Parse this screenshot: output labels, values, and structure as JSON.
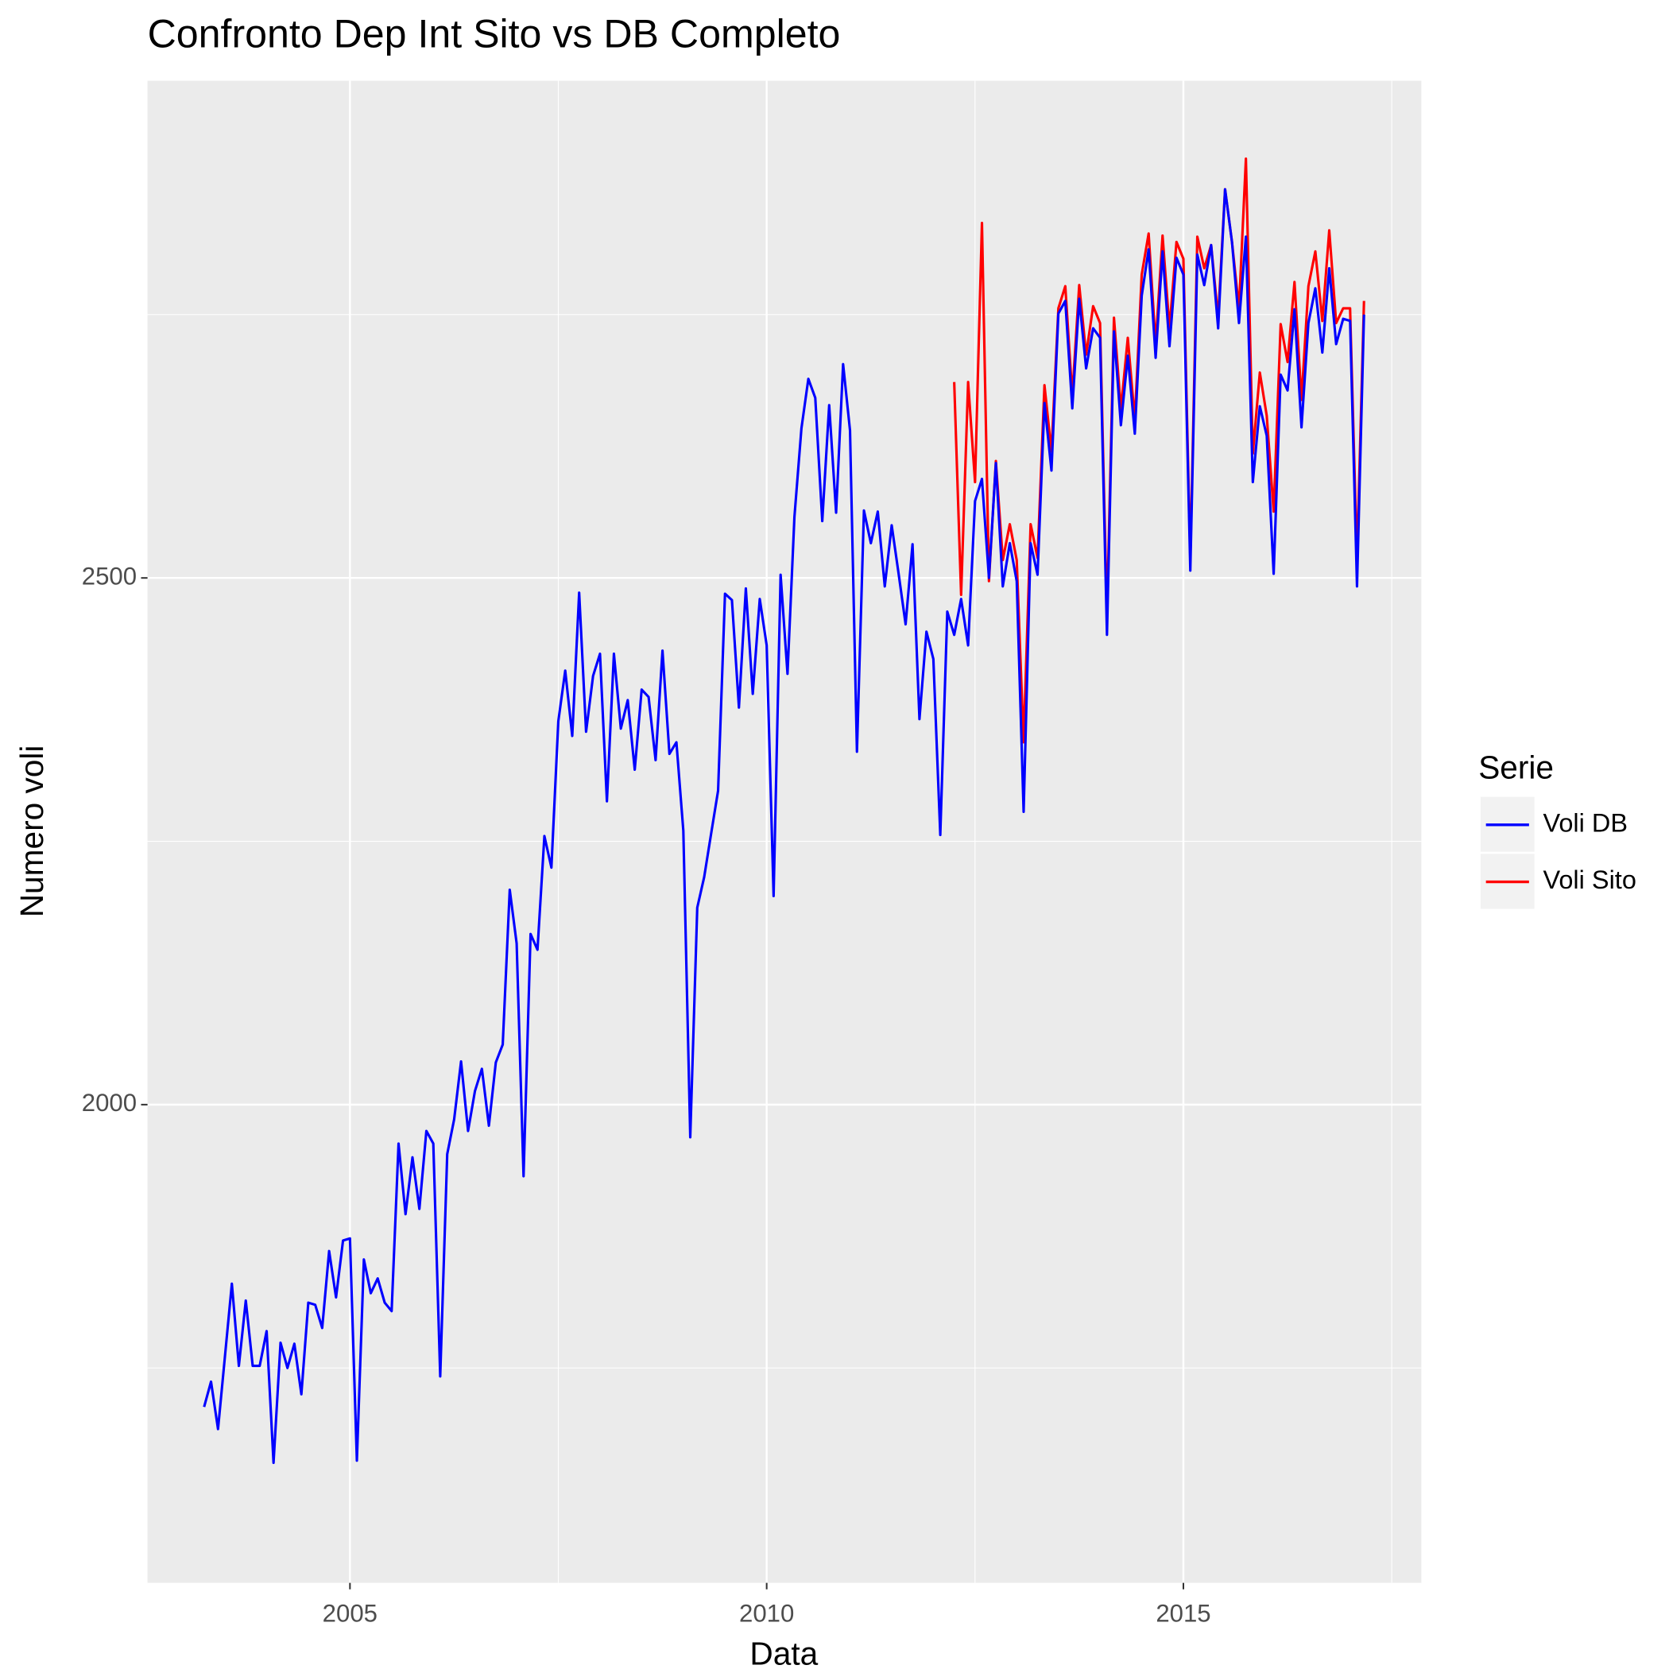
{
  "chart_data": {
    "type": "line",
    "title": "Confronto Dep Int Sito vs DB Completo",
    "x_label": "Data",
    "y_label": "Numero voli",
    "legend_title": "Serie",
    "legend_position": "right",
    "grid": true,
    "xlim": [
      2002.571,
      2017.855
    ],
    "ylim": [
      1546,
      2972
    ],
    "xticks": [
      2005,
      2010,
      2015
    ],
    "yticks": [
      2000,
      2500
    ],
    "x_minor_gridlines": [
      2007.5,
      2012.5,
      2017.5
    ],
    "y_minor_gridlines": [
      1750,
      2250,
      2750
    ],
    "x": [
      2003.25,
      2003.333,
      2003.417,
      2003.5,
      2003.583,
      2003.667,
      2003.75,
      2003.833,
      2003.917,
      2004,
      2004.083,
      2004.167,
      2004.25,
      2004.333,
      2004.417,
      2004.5,
      2004.583,
      2004.667,
      2004.75,
      2004.833,
      2004.917,
      2005,
      2005.083,
      2005.167,
      2005.25,
      2005.333,
      2005.417,
      2005.5,
      2005.583,
      2005.667,
      2005.75,
      2005.833,
      2005.917,
      2006,
      2006.083,
      2006.167,
      2006.25,
      2006.333,
      2006.417,
      2006.5,
      2006.583,
      2006.667,
      2006.75,
      2006.833,
      2006.917,
      2007,
      2007.083,
      2007.167,
      2007.25,
      2007.333,
      2007.417,
      2007.5,
      2007.583,
      2007.667,
      2007.75,
      2007.833,
      2007.917,
      2008,
      2008.083,
      2008.167,
      2008.25,
      2008.333,
      2008.417,
      2008.5,
      2008.583,
      2008.667,
      2008.75,
      2008.833,
      2008.917,
      2009,
      2009.083,
      2009.167,
      2009.25,
      2009.333,
      2009.417,
      2009.5,
      2009.583,
      2009.667,
      2009.75,
      2009.833,
      2009.917,
      2010,
      2010.083,
      2010.167,
      2010.25,
      2010.333,
      2010.417,
      2010.5,
      2010.583,
      2010.667,
      2010.75,
      2010.833,
      2010.917,
      2011,
      2011.083,
      2011.167,
      2011.25,
      2011.333,
      2011.417,
      2011.5,
      2011.583,
      2011.667,
      2011.75,
      2011.833,
      2011.917,
      2012,
      2012.083,
      2012.167,
      2012.25,
      2012.333,
      2012.417,
      2012.5,
      2012.583,
      2012.667,
      2012.75,
      2012.833,
      2012.917,
      2013,
      2013.083,
      2013.167,
      2013.25,
      2013.333,
      2013.417,
      2013.5,
      2013.583,
      2013.667,
      2013.75,
      2013.833,
      2013.917,
      2014,
      2014.083,
      2014.167,
      2014.25,
      2014.333,
      2014.417,
      2014.5,
      2014.583,
      2014.667,
      2014.75,
      2014.833,
      2014.917,
      2015,
      2015.083,
      2015.167,
      2015.25,
      2015.333,
      2015.417,
      2015.5,
      2015.583,
      2015.667,
      2015.75,
      2015.833,
      2015.917,
      2016,
      2016.083,
      2016.167,
      2016.25,
      2016.333,
      2016.417,
      2016.5,
      2016.583,
      2016.667,
      2016.75,
      2016.833,
      2016.917,
      2017,
      2017.083,
      2017.167
    ],
    "series": [
      {
        "name": "Voli DB",
        "color": "#0000ff",
        "values": [
          1713,
          1737,
          1692,
          1761,
          1830,
          1752,
          1814,
          1752,
          1752,
          1785,
          1660,
          1774,
          1750,
          1773,
          1725,
          1812,
          1810,
          1788,
          1861,
          1817,
          1871,
          1873,
          1662,
          1853,
          1821,
          1835,
          1812,
          1804,
          1963,
          1896,
          1950,
          1901,
          1975,
          1963,
          1742,
          1953,
          1986,
          2041,
          1975,
          2013,
          2034,
          1980,
          2040,
          2057,
          2204,
          2153,
          1932,
          2162,
          2147,
          2255,
          2225,
          2364,
          2412,
          2350,
          2486,
          2354,
          2407,
          2428,
          2288,
          2428,
          2357,
          2384,
          2318,
          2394,
          2387,
          2327,
          2431,
          2333,
          2344,
          2260,
          1969,
          2187,
          2216,
          2257,
          2298,
          2485,
          2479,
          2377,
          2490,
          2390,
          2480,
          2436,
          2198,
          2503,
          2409,
          2558,
          2642,
          2689,
          2671,
          2554,
          2664,
          2562,
          2703,
          2640,
          2335,
          2564,
          2533,
          2563,
          2492,
          2550,
          2504,
          2456,
          2532,
          2366,
          2449,
          2423,
          2256,
          2468,
          2446,
          2480,
          2436,
          2573,
          2594,
          2500,
          2609,
          2492,
          2533,
          2497,
          2278,
          2533,
          2503,
          2666,
          2602,
          2751,
          2763,
          2661,
          2765,
          2699,
          2737,
          2728,
          2446,
          2734,
          2645,
          2711,
          2637,
          2768,
          2812,
          2709,
          2810,
          2720,
          2804,
          2788,
          2507,
          2807,
          2778,
          2816,
          2737,
          2869,
          2819,
          2742,
          2824,
          2591,
          2663,
          2635,
          2504,
          2693,
          2678,
          2755,
          2643,
          2742,
          2775,
          2714,
          2794,
          2722,
          2746,
          2744,
          2492,
          2750
        ]
      },
      {
        "name": "Voli Sito",
        "color": "#ff0000",
        "values": [
          null,
          null,
          null,
          null,
          null,
          null,
          null,
          null,
          null,
          null,
          null,
          null,
          null,
          null,
          null,
          null,
          null,
          null,
          null,
          null,
          null,
          null,
          null,
          null,
          null,
          null,
          null,
          null,
          null,
          null,
          null,
          null,
          null,
          null,
          null,
          null,
          null,
          null,
          null,
          null,
          null,
          null,
          null,
          null,
          null,
          null,
          null,
          null,
          null,
          null,
          null,
          null,
          null,
          null,
          null,
          null,
          null,
          null,
          null,
          null,
          null,
          null,
          null,
          null,
          null,
          null,
          null,
          null,
          null,
          null,
          null,
          null,
          null,
          null,
          null,
          null,
          null,
          null,
          null,
          null,
          null,
          null,
          null,
          null,
          null,
          null,
          null,
          null,
          null,
          null,
          null,
          null,
          null,
          null,
          null,
          null,
          null,
          null,
          null,
          null,
          null,
          null,
          null,
          null,
          null,
          null,
          null,
          null,
          2686,
          2484,
          2686,
          2591,
          2837,
          2497,
          2611,
          2517,
          2551,
          2517,
          2344,
          2551,
          2519,
          2683,
          2620,
          2756,
          2777,
          2673,
          2778,
          2712,
          2758,
          2742,
          2463,
          2747,
          2660,
          2728,
          2650,
          2788,
          2827,
          2722,
          2825,
          2737,
          2819,
          2803,
          2517,
          2824,
          2794,
          2816,
          2747,
          2869,
          2819,
          2756,
          2898,
          2618,
          2695,
          2654,
          2563,
          2741,
          2705,
          2781,
          2669,
          2777,
          2810,
          2744,
          2830,
          2742,
          2756,
          2756,
          2517,
          2763
        ]
      }
    ]
  }
}
